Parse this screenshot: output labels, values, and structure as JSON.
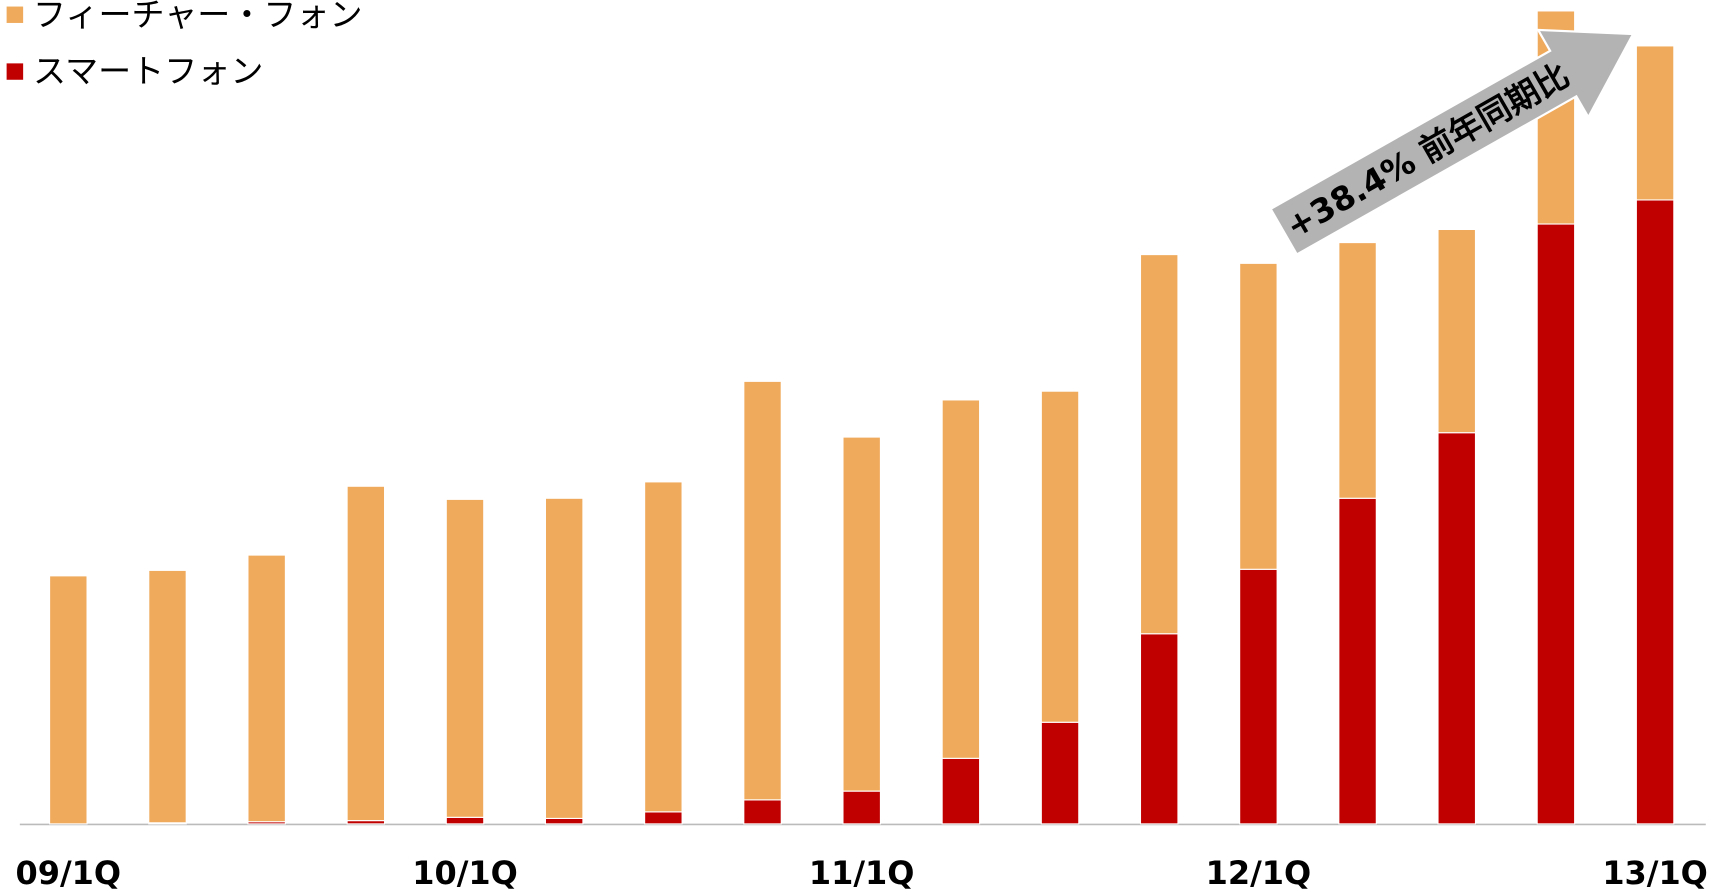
{
  "chart_data": {
    "type": "stacked_bar",
    "categories": [
      "09/1Q",
      null,
      null,
      null,
      "10/1Q",
      null,
      null,
      null,
      "11/1Q",
      null,
      null,
      null,
      "12/1Q",
      null,
      null,
      null,
      "13/1Q"
    ],
    "series": [
      {
        "name": "スマートフォン",
        "color": "#c00000",
        "values": [
          0,
          1,
          2,
          3,
          6,
          5,
          11,
          22,
          30,
          60,
          93,
          174,
          233,
          298,
          358,
          549,
          571
        ]
      },
      {
        "name": "フィーチャー・フォン",
        "color": "#f0aa5c",
        "values": [
          227,
          231,
          244,
          306,
          291,
          293,
          302,
          383,
          324,
          328,
          303,
          347,
          280,
          234,
          186,
          195,
          141
        ]
      }
    ],
    "annotation": "+38.4% 前年同期比"
  }
}
